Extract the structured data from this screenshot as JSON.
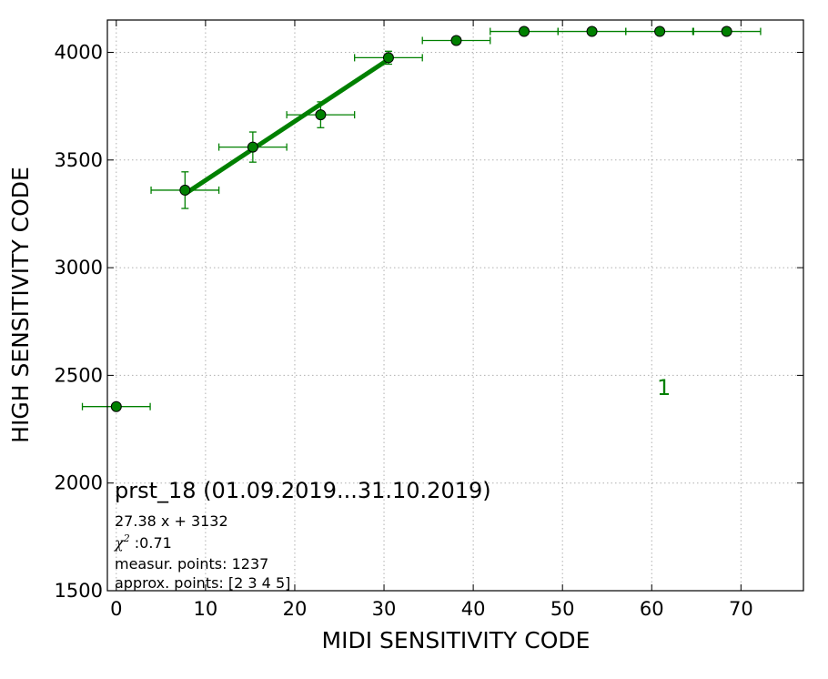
{
  "chart_data": {
    "type": "scatter",
    "xlabel": "MIDI SENSITIVITY CODE",
    "ylabel": "HIGH SENSITIVITY CODE",
    "xlim": [
      -1,
      77
    ],
    "ylim": [
      1500,
      4150
    ],
    "x_ticks": [
      0,
      10,
      20,
      30,
      40,
      50,
      60,
      70
    ],
    "y_ticks": [
      1500,
      2000,
      2500,
      3000,
      3500,
      4000
    ],
    "grid": true,
    "color": "#008000",
    "points": [
      {
        "x": 0.0,
        "y": 2355,
        "xerr": 3.8,
        "yerr": 0
      },
      {
        "x": 7.7,
        "y": 3360,
        "xerr": 3.8,
        "yerr": 85
      },
      {
        "x": 15.3,
        "y": 3560,
        "xerr": 3.8,
        "yerr": 70
      },
      {
        "x": 22.9,
        "y": 3710,
        "xerr": 3.8,
        "yerr": 60
      },
      {
        "x": 30.5,
        "y": 3975,
        "xerr": 3.8,
        "yerr": 30
      },
      {
        "x": 38.1,
        "y": 4055,
        "xerr": 3.8,
        "yerr": 0
      },
      {
        "x": 45.7,
        "y": 4097,
        "xerr": 3.8,
        "yerr": 0
      },
      {
        "x": 53.3,
        "y": 4097,
        "xerr": 3.8,
        "yerr": 0
      },
      {
        "x": 60.9,
        "y": 4097,
        "xerr": 3.8,
        "yerr": 0
      },
      {
        "x": 68.4,
        "y": 4097,
        "xerr": 3.8,
        "yerr": 0
      }
    ],
    "fit": {
      "slope": 27.38,
      "intercept": 3132,
      "x_range": [
        7.7,
        30.5
      ]
    },
    "annotations": {
      "title": "prst_18 (01.09.2019...31.10.2019)",
      "equation": "27.38 x + 3132",
      "chi_symbol": "χ",
      "chi_sup": "2",
      "chi_value": " :0.71",
      "measur": "measur. points: 1237",
      "approx": "approx. points: [2 3 4 5]",
      "marker": "1"
    }
  }
}
